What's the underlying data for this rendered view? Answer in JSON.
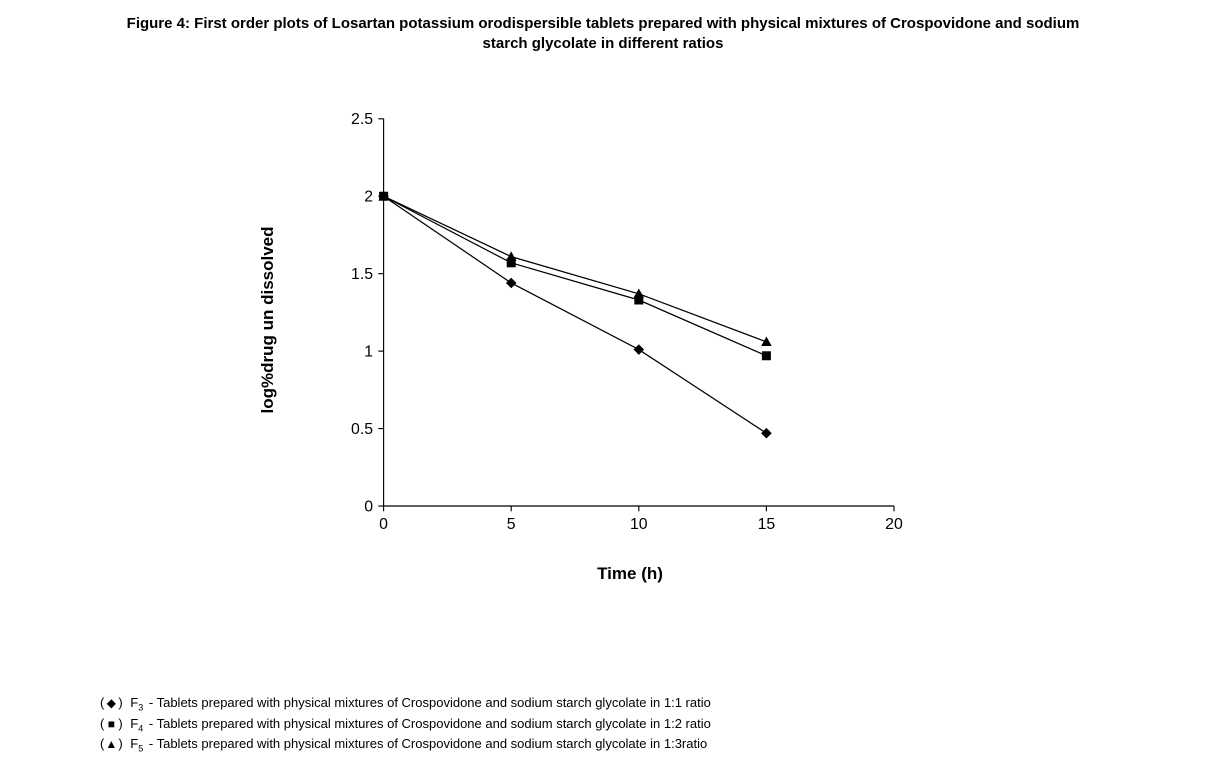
{
  "title": "Figure 4: First order plots of Losartan potassium orodispersible tablets prepared with physical mixtures of Crospovidone and sodium\nstarch glycolate in different ratios",
  "chart": {
    "type": "line",
    "xlabel": "Time (h)",
    "ylabel": "log%drug un dissolved",
    "xlim": [
      0,
      20
    ],
    "ylim": [
      0,
      2.5
    ],
    "xtick_step": 5,
    "ytick_step": 0.5,
    "xticks": [
      0,
      5,
      10,
      15,
      20
    ],
    "yticks": [
      0,
      0.5,
      1,
      1.5,
      2,
      2.5
    ],
    "ytick_labels": [
      "0",
      "0.5",
      "1",
      "1.5",
      "2",
      "2.5"
    ],
    "background_color": "#ffffff",
    "axis_color": "#000000",
    "axis_width": 1.3,
    "line_color": "#000000",
    "line_width": 1.4,
    "marker_fill": "#000000",
    "marker_size": 12,
    "title_fontsize": 15,
    "label_fontsize": 17,
    "tick_fontsize": 18,
    "series": [
      {
        "id": "F3",
        "marker": "diamond",
        "x": [
          0,
          5,
          10,
          15
        ],
        "y": [
          2.0,
          1.44,
          1.01,
          0.47
        ]
      },
      {
        "id": "F4",
        "marker": "square",
        "x": [
          0,
          5,
          10,
          15
        ],
        "y": [
          2.0,
          1.57,
          1.33,
          0.97
        ]
      },
      {
        "id": "F5",
        "marker": "triangle",
        "x": [
          0,
          5,
          10,
          15
        ],
        "y": [
          2.0,
          1.61,
          1.37,
          1.06
        ]
      }
    ]
  },
  "legend": {
    "items": [
      {
        "symbol": "◆",
        "code": "F",
        "sub": "3",
        "text": "-  Tablets prepared with physical mixtures of Crospovidone and sodium starch glycolate in 1:1 ratio"
      },
      {
        "symbol": "■",
        "code": "F",
        "sub": "4",
        "text": "-  Tablets prepared with physical mixtures of Crospovidone and sodium starch glycolate in 1:2 ratio"
      },
      {
        "symbol": "▲",
        "code": "F",
        "sub": "5",
        "text": "-  Tablets prepared with physical mixtures of Crospovidone and sodium starch glycolate in 1:3ratio"
      }
    ]
  }
}
